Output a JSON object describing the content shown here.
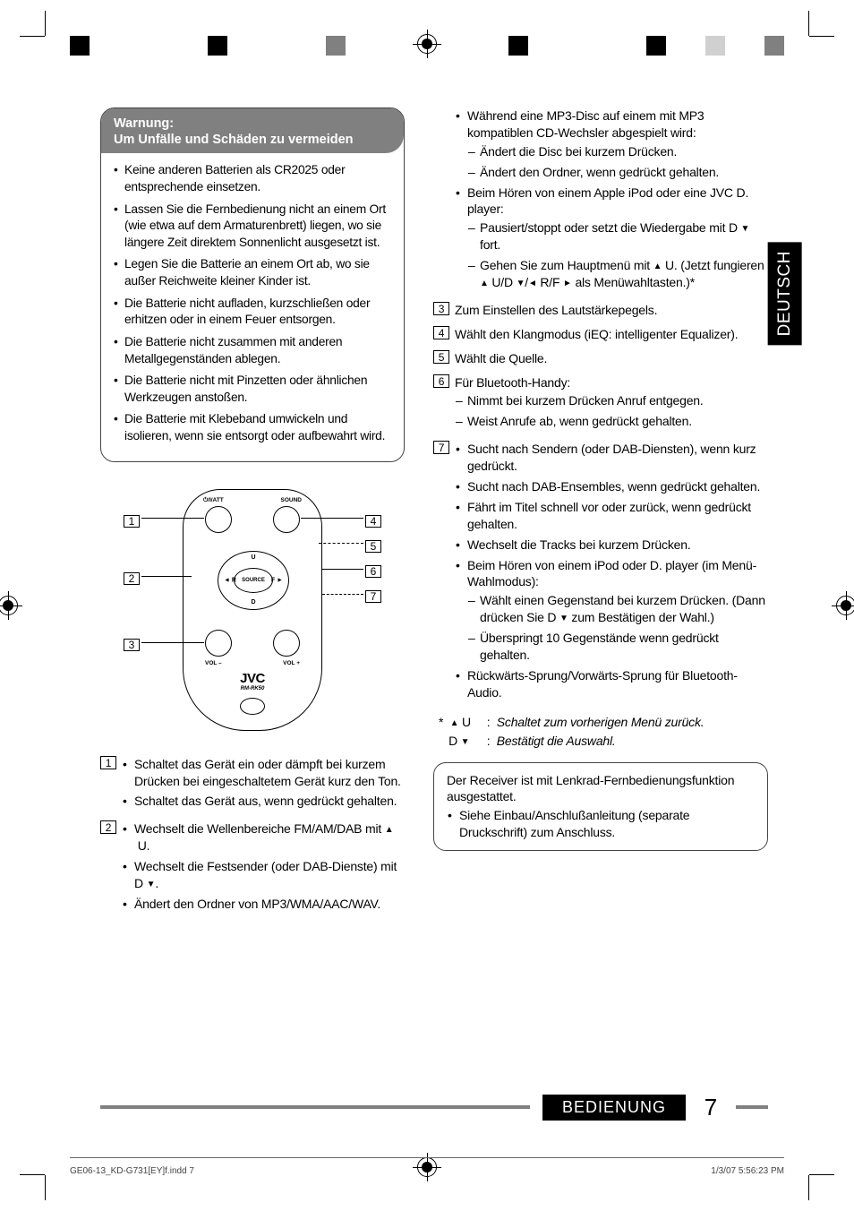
{
  "language_tab": "DEUTSCH",
  "warning": {
    "title": "Warnung:",
    "subtitle": "Um Unfälle und Schäden zu vermeiden",
    "items": [
      "Keine anderen Batterien als CR2025 oder entsprechende einsetzen.",
      "Lassen Sie die Fernbedienung nicht an einem Ort (wie etwa auf dem Armaturenbrett) liegen, wo sie längere Zeit direktem Sonnenlicht ausgesetzt ist.",
      "Legen Sie die Batterie an einem Ort ab, wo sie außer Reichweite kleiner Kinder ist.",
      "Die Batterie nicht aufladen, kurzschließen oder erhitzen oder in einem Feuer entsorgen.",
      "Die Batterie nicht zusammen mit anderen Metallgegenständen ablegen.",
      "Die Batterie nicht mit Pinzetten oder ähnlichen Werkzeugen anstoßen.",
      "Die Batterie mit Klebeband umwickeln und isolieren, wenn sie entsorgt oder aufbewahrt wird."
    ],
    "head_bg": "#808080",
    "head_color": "#ffffff"
  },
  "remote": {
    "brand": "JVC",
    "model": "RM-RK50",
    "btn_att": "⏻/I/ATT",
    "btn_sound": "SOUND",
    "btn_source": "SOURCE",
    "btn_u": "U",
    "btn_d": "D",
    "btn_r": "R",
    "btn_f": "F",
    "btn_volm": "VOL –",
    "btn_volp": "VOL +",
    "callouts": {
      "1": "1",
      "2": "2",
      "3": "3",
      "4": "4",
      "5": "5",
      "6": "6",
      "7": "7"
    }
  },
  "functions": {
    "f1": {
      "items": [
        "Schaltet das Gerät ein oder dämpft bei kurzem Drücken bei eingeschaltetem Gerät kurz den Ton.",
        "Schaltet das Gerät aus, wenn gedrückt gehalten."
      ]
    },
    "f2": {
      "items": [
        "Wechselt die Wellenbereiche FM/AM/DAB mit ▲ U.",
        "Wechselt die Festsender (oder DAB-Dienste) mit D ▼.",
        "Ändert den Ordner von MP3/WMA/AAC/WAV."
      ]
    },
    "f2_cont": {
      "items": [
        {
          "text": "Während eine MP3-Disc auf einem mit MP3 kompatiblen CD-Wechsler abgespielt wird:",
          "sub": [
            "Ändert die Disc bei kurzem Drücken.",
            "Ändert den Ordner, wenn gedrückt gehalten."
          ]
        },
        {
          "text": "Beim Hören von einem Apple iPod oder eine JVC D. player:",
          "sub": [
            "Pausiert/stoppt oder setzt die Wiedergabe mit D ▼ fort.",
            "Gehen Sie zum Hauptmenü mit ▲ U. (Jetzt fungieren ▲ U/D ▼/◄ R/F ► als Menüwahltasten.)*"
          ]
        }
      ]
    },
    "f3": "Zum Einstellen des Lautstärkepegels.",
    "f4": "Wählt den Klangmodus (iEQ: intelligenter Equalizer).",
    "f5": "Wählt die Quelle.",
    "f6": {
      "head": "Für Bluetooth-Handy:",
      "sub": [
        "Nimmt bei kurzem Drücken Anruf entgegen.",
        "Weist Anrufe ab, wenn gedrückt gehalten."
      ]
    },
    "f7": {
      "items": [
        "Sucht nach Sendern (oder DAB-Diensten), wenn kurz gedrückt.",
        "Sucht nach DAB-Ensembles, wenn gedrückt gehalten.",
        "Fährt im Titel schnell vor oder zurück, wenn gedrückt gehalten.",
        "Wechselt die Tracks bei kurzem Drücken.",
        {
          "text": "Beim Hören von einem iPod oder D. player (im Menü-Wahlmodus):",
          "sub": [
            "Wählt einen Gegenstand bei kurzem Drücken. (Dann drücken Sie D ▼ zum Bestätigen der Wahl.)",
            "Überspringt 10 Gegenstände wenn gedrückt gehalten."
          ]
        },
        "Rückwärts-Sprung/Vorwärts-Sprung für Bluetooth-Audio."
      ]
    }
  },
  "footnote": {
    "marker": "*",
    "r1_sym": "▲ U",
    "r1_txt": "Schaltet zum vorherigen Menü zurück.",
    "r2_sym": "D ▼",
    "r2_txt": "Bestätigt die Auswahl."
  },
  "receiver_box": {
    "line1": "Der Receiver ist mit Lenkrad-Fernbedienungsfunktion ausgestattet.",
    "bullet": "Siehe Einbau/Anschlußanleitung (separate Druckschrift) zum Anschluss."
  },
  "footer": {
    "section": "BEDIENUNG",
    "page": "7",
    "bar_color": "#808080",
    "label_bg": "#000000",
    "label_color": "#ffffff"
  },
  "imprint": {
    "file": "GE06-13_KD-G731[EY]f.indd   7",
    "timestamp": "1/3/07   5:56:23 PM"
  },
  "color_chips_left": [
    "#000000",
    "#ffffff",
    "#ffffff",
    "#ffffff",
    "#ffffff",
    "#ffffff",
    "#ffffff",
    "#000000",
    "#ffffff",
    "#ffffff",
    "#ffffff",
    "#ffffff",
    "#ffffff",
    "#808080"
  ],
  "color_chips_right": [
    "#000000",
    "#ffffff",
    "#ffffff",
    "#ffffff",
    "#ffffff",
    "#ffffff",
    "#ffffff",
    "#000000",
    "#ffffff",
    "#ffffff",
    "#d0d0d0",
    "#ffffff",
    "#ffffff",
    "#808080"
  ]
}
